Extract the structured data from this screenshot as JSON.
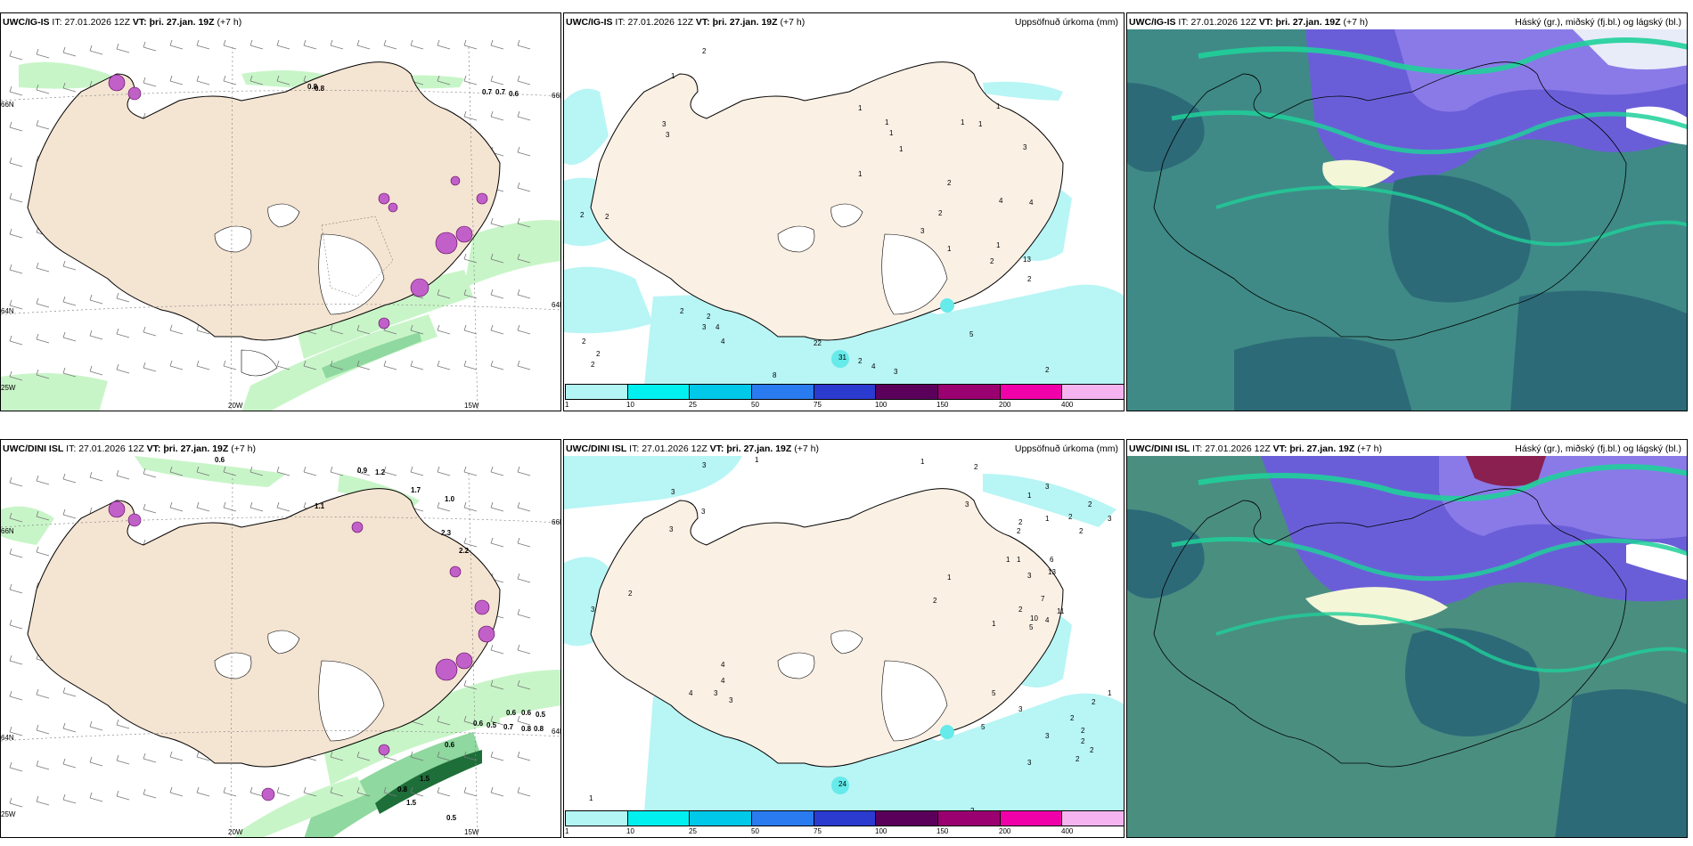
{
  "panels": {
    "p1": {
      "model": "UWC/IG-IS",
      "it_label": "IT:",
      "it_value": "27.01.2026 12Z",
      "vt_label": "VT:",
      "vt_value": "þri. 27.jan. 19Z",
      "lead": "(+7 h)",
      "title_right": "",
      "axis": {
        "lon_w20": "20W",
        "lon_w15": "15W",
        "lat_66n": "66N",
        "lat_64n": "64N",
        "lon_25w": "25W",
        "lat_66n_r": "66N",
        "lat_64n_r": "64N"
      },
      "values": [
        "0.8",
        "0.8",
        "0.7",
        "0.7",
        "0.6"
      ]
    },
    "p2": {
      "model": "UWC/IG-IS",
      "it_label": "IT:",
      "it_value": "27.01.2026 12Z",
      "vt_label": "VT:",
      "vt_value": "þri. 27.jan. 19Z",
      "lead": "(+7 h)",
      "title_right": "Uppsöfnuð úrkoma (mm)",
      "values": [
        "2",
        "1",
        "3",
        "3",
        "1",
        "1",
        "1",
        "1",
        "1",
        "1",
        "1",
        "1",
        "2",
        "2",
        "4",
        "4",
        "3",
        "1",
        "2",
        "2",
        "3",
        "1",
        "13",
        "2",
        "2",
        "4",
        "5",
        "2",
        "2",
        "2",
        "2",
        "2",
        "3",
        "4",
        "8",
        "5",
        "1",
        "2",
        "4",
        "3",
        "2",
        "2",
        "22",
        "31"
      ]
    },
    "p3": {
      "model": "UWC/IG-IS",
      "it_label": "IT:",
      "it_value": "27.01.2026 12Z",
      "vt_label": "VT:",
      "vt_value": "þri. 27.jan. 19Z",
      "lead": "(+7 h)",
      "title_right": "Háský (gr.), miðský (fj.bl.) og lágský (bl.)"
    },
    "p4": {
      "model": "UWC/DINI ISL",
      "it_label": "IT:",
      "it_value": "27.01.2026 12Z",
      "vt_label": "VT:",
      "vt_value": "þri. 27.jan. 19Z",
      "lead": "(+7 h)",
      "title_right": "",
      "axis": {
        "lon_w20": "20W",
        "lon_w15": "15W",
        "lat_66n": "66N",
        "lat_64n": "64N",
        "lon_25w": "25W",
        "lat_66n_r": "66N",
        "lat_64n_r": "64N"
      },
      "values": [
        "0.6",
        "0.9",
        "1.2",
        "1.7",
        "1.0",
        "1.1",
        "2.3",
        "2.2",
        "0.6",
        "0.6",
        "0.7",
        "0.8",
        "0.8",
        "0.5",
        "0.5",
        "0.6",
        "0.6",
        "0.8",
        "1.5",
        "1.5",
        "0.5"
      ]
    },
    "p5": {
      "model": "UWC/DINI ISL",
      "it_label": "IT:",
      "it_value": "27.01.2026 12Z",
      "vt_label": "VT:",
      "vt_value": "þri. 27.jan. 19Z",
      "lead": "(+7 h)",
      "title_right": "Uppsöfnuð úrkoma (mm)",
      "values": [
        "3",
        "1",
        "1",
        "2",
        "3",
        "3",
        "3",
        "3",
        "3",
        "2",
        "2",
        "2",
        "1",
        "2",
        "2",
        "3",
        "1",
        "3",
        "2",
        "6",
        "13",
        "7",
        "10",
        "5",
        "11",
        "4",
        "2",
        "2",
        "3",
        "1",
        "1",
        "1",
        "1",
        "4",
        "4",
        "3",
        "3",
        "4",
        "5",
        "5",
        "3",
        "3",
        "2",
        "2",
        "2",
        "2",
        "1",
        "2",
        "2",
        "3",
        "2",
        "24",
        "1"
      ]
    },
    "p6": {
      "model": "UWC/DINI ISL",
      "it_label": "IT:",
      "it_value": "27.01.2026 12Z",
      "vt_label": "VT:",
      "vt_value": "þri. 27.jan. 19Z",
      "lead": "(+7 h)",
      "title_right": "Háský (gr.), miðský (fj.bl.) og lágský (bl.)"
    }
  },
  "colorbar": {
    "labels": [
      "1",
      "10",
      "25",
      "50",
      "75",
      "100",
      "150",
      "200",
      "400"
    ],
    "colors": [
      "#b3f5f5",
      "#00f0f0",
      "#00c8e8",
      "#2a7bef",
      "#2b3bd0",
      "#5a005a",
      "#9a0070",
      "#f000a8",
      "#f5b4f0"
    ]
  },
  "colors": {
    "land": "#f4e4d2",
    "sea_precip_light": "#b8f5f5",
    "sea_precip_mid": "#66eaea",
    "wind_green_light": "#c8f5c8",
    "wind_green_dark": "#1e6e3a",
    "snow_magenta": "#c060c8",
    "cloud_teal": "#3a8f8a",
    "cloud_dark": "#2a6a78",
    "cloud_purple": "#7a6ad0",
    "cloud_green": "#1fd09a"
  }
}
